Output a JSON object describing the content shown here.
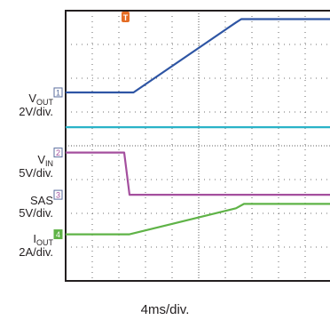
{
  "chart_data": {
    "type": "line",
    "title": "",
    "xlabel": "4ms/div.",
    "x_divisions": 10,
    "y_divisions": 8,
    "grid": true,
    "trigger_marker": {
      "label": "T",
      "color": "#e46c24",
      "time_div": 2.25
    },
    "channel_marker_color": "#5b6e9e",
    "channels": [
      {
        "marker": "1",
        "name_main": "V",
        "name_sub": "OUT",
        "scale": "2V/div.",
        "color": "#2e55a4",
        "points_div": [
          [
            0,
            5.58
          ],
          [
            2.55,
            5.58
          ],
          [
            6.4,
            7.65
          ],
          [
            6.6,
            7.75
          ],
          [
            10,
            7.75
          ]
        ]
      },
      {
        "marker": "",
        "name_main": "",
        "name_sub": "",
        "scale": "",
        "color": "#2ab3c8",
        "points_div": [
          [
            0,
            4.55
          ],
          [
            10,
            4.55
          ]
        ]
      },
      {
        "marker": "2",
        "name_main": "V",
        "name_sub": "IN",
        "scale": "5V/div.",
        "color": "#a44f9e",
        "points_div": [
          [
            0,
            3.8
          ],
          [
            2.2,
            3.8
          ],
          [
            2.4,
            2.55
          ],
          [
            10,
            2.55
          ]
        ]
      },
      {
        "marker": "3",
        "name_main": "SAS",
        "name_sub": "",
        "scale": "5V/div.",
        "color": "#a44f9e",
        "points_div": []
      },
      {
        "marker": "4",
        "name_main": "I",
        "name_sub": "OUT",
        "scale": "2A/div.",
        "color": "#5fb347",
        "points_div": [
          [
            0,
            1.38
          ],
          [
            2.4,
            1.38
          ],
          [
            6.4,
            2.15
          ],
          [
            6.7,
            2.28
          ],
          [
            10,
            2.28
          ]
        ]
      }
    ]
  }
}
